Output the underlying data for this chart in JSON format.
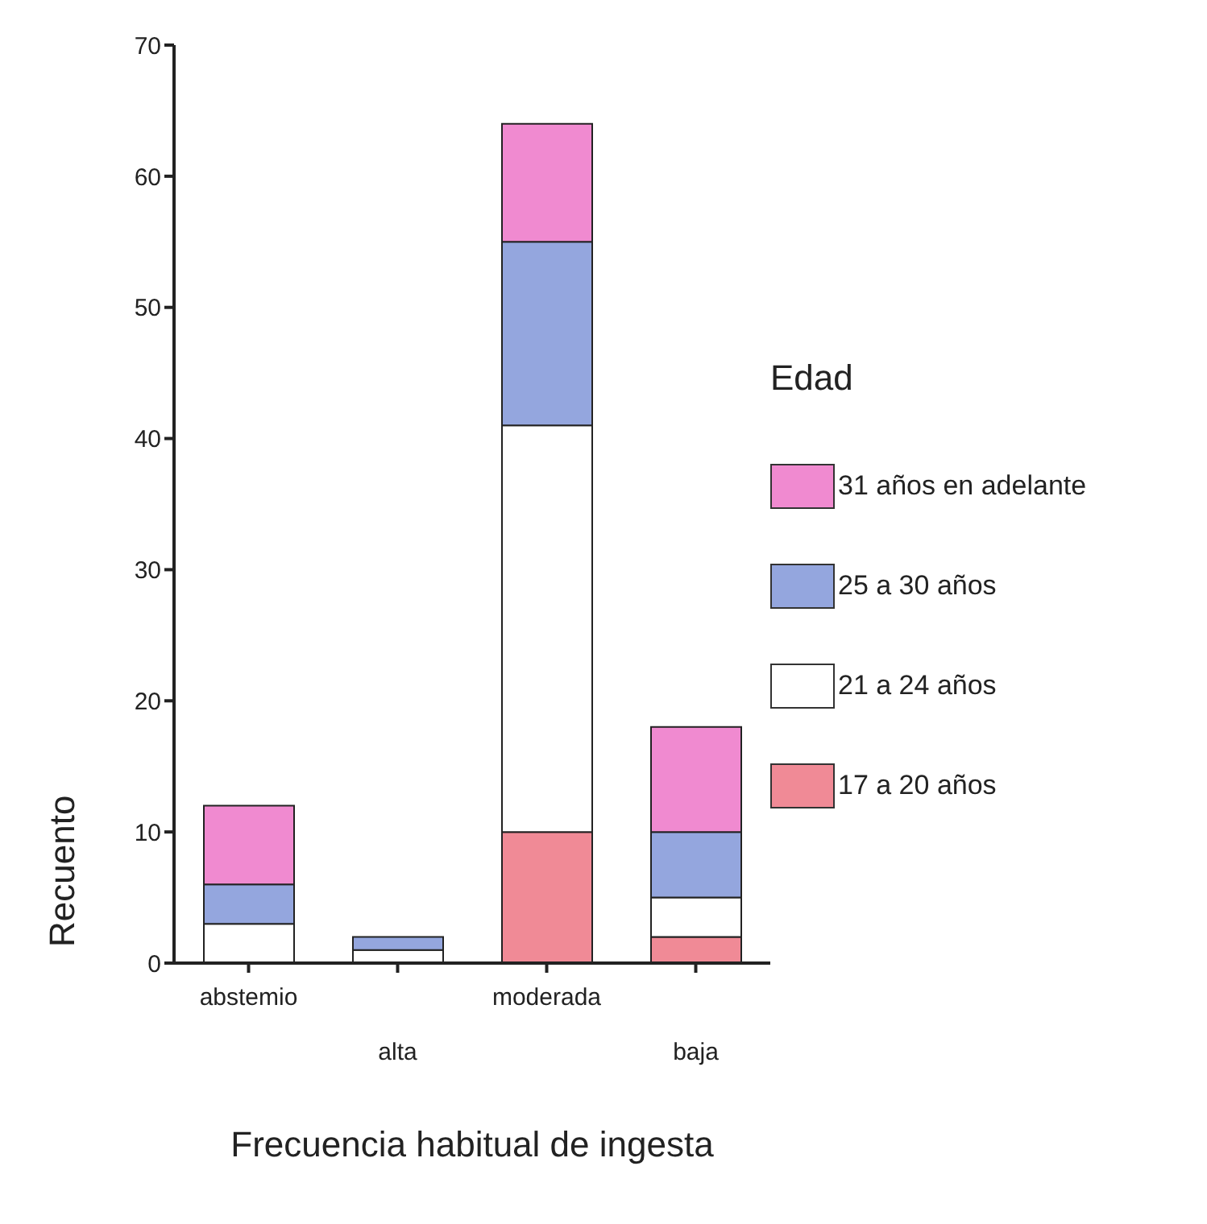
{
  "chart_data": {
    "type": "bar",
    "stacked": true,
    "xlabel": "Frecuencia habitual de ingesta",
    "ylabel": "Recuento",
    "legend_title": "Edad",
    "legend": "right",
    "categories": [
      "abstemio",
      "alta",
      "moderada",
      "baja"
    ],
    "series": [
      {
        "name": "17 a 20 años",
        "color": "#f08a96",
        "values": [
          0,
          0,
          10,
          2
        ]
      },
      {
        "name": "21 a 24 años",
        "color": "#ffffff",
        "values": [
          3,
          1,
          31,
          3
        ]
      },
      {
        "name": "25 a 30 años",
        "color": "#94a6de",
        "values": [
          3,
          1,
          14,
          5
        ]
      },
      {
        "name": "31 años en adelante",
        "color": "#f08ad0",
        "values": [
          6,
          0,
          9,
          8
        ]
      }
    ],
    "ylim": [
      0,
      70
    ],
    "yticks": [
      0,
      10,
      20,
      30,
      40,
      50,
      60,
      70
    ],
    "grid": false
  }
}
